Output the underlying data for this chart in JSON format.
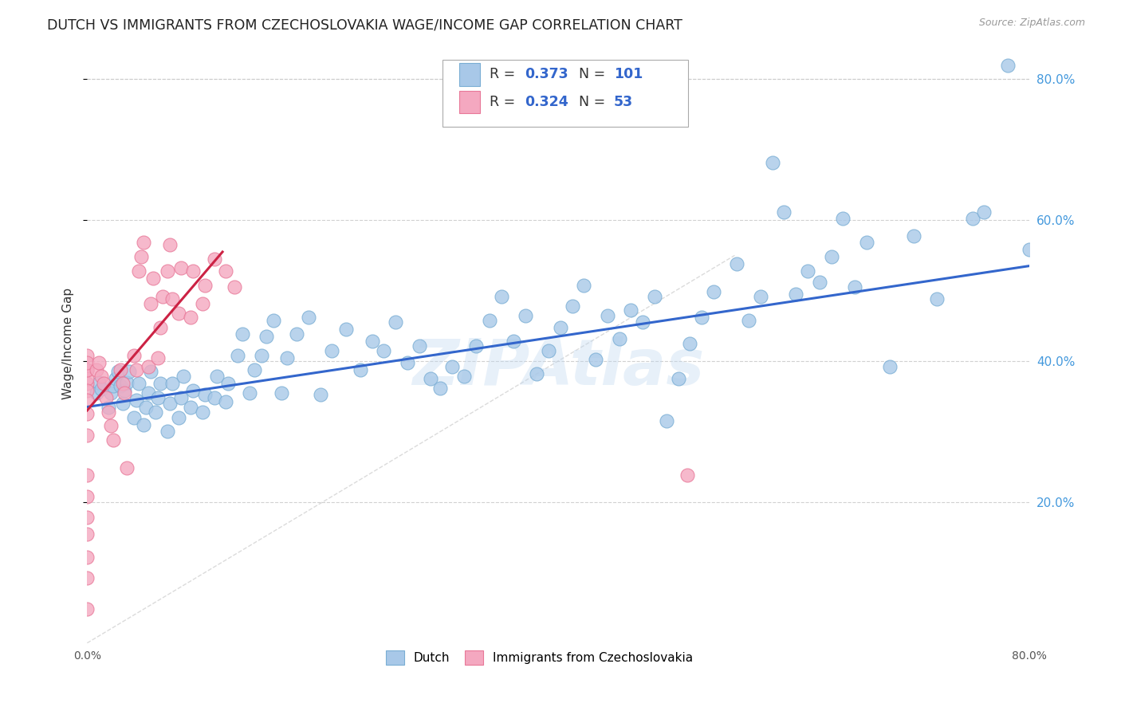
{
  "title": "DUTCH VS IMMIGRANTS FROM CZECHOSLOVAKIA WAGE/INCOME GAP CORRELATION CHART",
  "source": "Source: ZipAtlas.com",
  "watermark": "ZIPAtlas",
  "legend_label_dutch": "Dutch",
  "legend_label_imm": "Immigrants from Czechoslovakia",
  "dutch_color": "#a8c8e8",
  "imm_color": "#f4a8c0",
  "dutch_edge": "#7aaed4",
  "imm_edge": "#e87898",
  "trendline_dutch_color": "#3366cc",
  "trendline_imm_color": "#cc2244",
  "diagonal_color": "#cccccc",
  "r_value_color": "#3366cc",
  "background": "#ffffff",
  "grid_color": "#cccccc",
  "ytick_color": "#4499dd",
  "xlim": [
    0.0,
    0.8
  ],
  "ylim": [
    0.0,
    0.85
  ],
  "yticks": [
    0.2,
    0.4,
    0.6,
    0.8
  ],
  "ytick_labels": [
    "20.0%",
    "40.0%",
    "60.0%",
    "80.0%"
  ],
  "xtick_vals": [
    0.0,
    0.1,
    0.2,
    0.3,
    0.4,
    0.5,
    0.6,
    0.7,
    0.8
  ],
  "xtick_labels": [
    "0.0%",
    "",
    "",
    "",
    "",
    "",
    "",
    "",
    "80.0%"
  ],
  "dutch_x": [
    0.008,
    0.01,
    0.012,
    0.018,
    0.02,
    0.022,
    0.024,
    0.026,
    0.028,
    0.03,
    0.032,
    0.034,
    0.036,
    0.04,
    0.042,
    0.044,
    0.048,
    0.05,
    0.052,
    0.054,
    0.058,
    0.06,
    0.062,
    0.068,
    0.07,
    0.072,
    0.078,
    0.08,
    0.082,
    0.088,
    0.09,
    0.098,
    0.1,
    0.108,
    0.11,
    0.118,
    0.12,
    0.128,
    0.132,
    0.138,
    0.142,
    0.148,
    0.152,
    0.158,
    0.165,
    0.17,
    0.178,
    0.188,
    0.198,
    0.208,
    0.22,
    0.232,
    0.242,
    0.252,
    0.262,
    0.272,
    0.282,
    0.292,
    0.3,
    0.31,
    0.32,
    0.33,
    0.342,
    0.352,
    0.362,
    0.372,
    0.382,
    0.392,
    0.402,
    0.412,
    0.422,
    0.432,
    0.442,
    0.452,
    0.462,
    0.472,
    0.482,
    0.492,
    0.502,
    0.512,
    0.522,
    0.532,
    0.552,
    0.562,
    0.572,
    0.582,
    0.592,
    0.602,
    0.612,
    0.622,
    0.632,
    0.642,
    0.652,
    0.662,
    0.682,
    0.702,
    0.722,
    0.752,
    0.762,
    0.782,
    0.8
  ],
  "dutch_y": [
    0.355,
    0.37,
    0.36,
    0.335,
    0.355,
    0.365,
    0.375,
    0.385,
    0.365,
    0.34,
    0.358,
    0.37,
    0.385,
    0.32,
    0.345,
    0.368,
    0.31,
    0.335,
    0.355,
    0.385,
    0.328,
    0.348,
    0.368,
    0.3,
    0.34,
    0.368,
    0.32,
    0.348,
    0.378,
    0.335,
    0.358,
    0.328,
    0.352,
    0.348,
    0.378,
    0.342,
    0.368,
    0.408,
    0.438,
    0.355,
    0.388,
    0.408,
    0.435,
    0.458,
    0.355,
    0.405,
    0.438,
    0.462,
    0.352,
    0.415,
    0.445,
    0.388,
    0.428,
    0.415,
    0.455,
    0.398,
    0.422,
    0.375,
    0.362,
    0.392,
    0.378,
    0.422,
    0.458,
    0.492,
    0.428,
    0.465,
    0.382,
    0.415,
    0.448,
    0.478,
    0.508,
    0.402,
    0.465,
    0.432,
    0.472,
    0.455,
    0.492,
    0.315,
    0.375,
    0.425,
    0.462,
    0.498,
    0.538,
    0.458,
    0.492,
    0.682,
    0.612,
    0.495,
    0.528,
    0.512,
    0.548,
    0.602,
    0.505,
    0.568,
    0.392,
    0.578,
    0.488,
    0.602,
    0.612,
    0.82,
    0.558
  ],
  "imm_x": [
    0.0,
    0.0,
    0.0,
    0.0,
    0.0,
    0.0,
    0.0,
    0.0,
    0.0,
    0.0,
    0.0,
    0.0,
    0.0,
    0.0,
    0.0,
    0.0,
    0.0,
    0.008,
    0.01,
    0.012,
    0.014,
    0.016,
    0.018,
    0.02,
    0.022,
    0.028,
    0.03,
    0.032,
    0.034,
    0.04,
    0.042,
    0.044,
    0.046,
    0.048,
    0.052,
    0.054,
    0.056,
    0.06,
    0.062,
    0.064,
    0.068,
    0.07,
    0.072,
    0.078,
    0.08,
    0.088,
    0.09,
    0.098,
    0.1,
    0.108,
    0.118,
    0.125,
    0.51
  ],
  "imm_y": [
    0.368,
    0.388,
    0.375,
    0.408,
    0.388,
    0.398,
    0.358,
    0.345,
    0.325,
    0.295,
    0.238,
    0.208,
    0.178,
    0.155,
    0.122,
    0.092,
    0.048,
    0.388,
    0.398,
    0.378,
    0.368,
    0.348,
    0.328,
    0.308,
    0.288,
    0.388,
    0.368,
    0.355,
    0.248,
    0.408,
    0.388,
    0.528,
    0.548,
    0.568,
    0.392,
    0.482,
    0.518,
    0.405,
    0.448,
    0.492,
    0.528,
    0.565,
    0.488,
    0.468,
    0.532,
    0.462,
    0.528,
    0.482,
    0.508,
    0.545,
    0.528,
    0.505,
    0.238
  ]
}
